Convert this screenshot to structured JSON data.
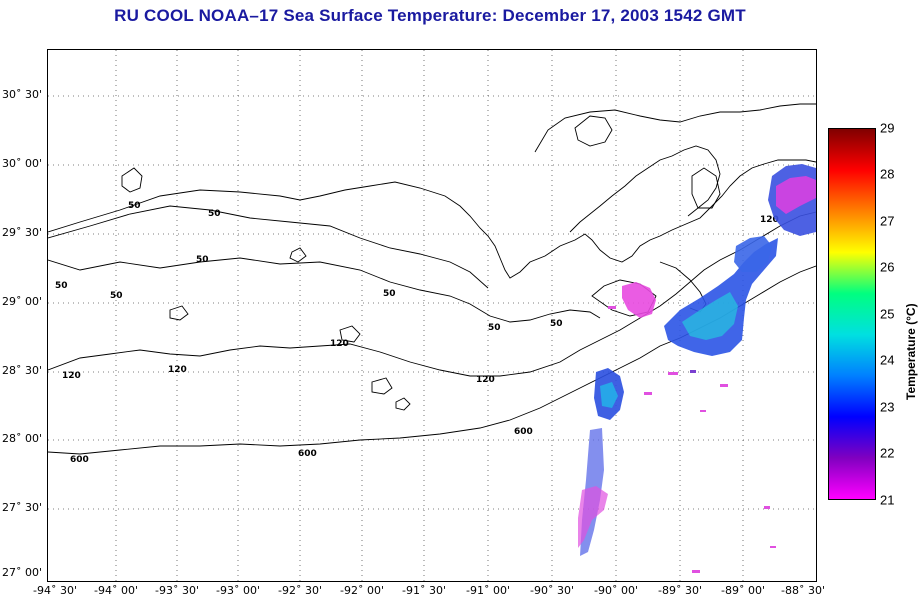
{
  "title": "RU COOL  NOAA–17  Sea Surface Temperature:  December 17, 2003 1542 GMT",
  "lat_ticks": [
    "30˚ 30'",
    "30˚ 00'",
    "29˚ 30'",
    "29˚ 00'",
    "28˚ 30'",
    "28˚ 00'",
    "27˚ 30'",
    "27˚ 00'"
  ],
  "lon_ticks": [
    "-94˚ 30'",
    "-94˚ 00'",
    "-93˚ 30'",
    "-93˚ 00'",
    "-92˚ 30'",
    "-92˚ 00'",
    "-91˚ 30'",
    "-91˚ 00'",
    "-90˚ 30'",
    "-90˚ 00'",
    "-89˚ 30'",
    "-89˚ 00'",
    "-88˚ 30'"
  ],
  "contour_labels": [
    "50",
    "120",
    "600"
  ],
  "colorbar": {
    "title": "Temperature (°C)",
    "ticks": [
      "29",
      "28",
      "27",
      "26",
      "25",
      "24",
      "23",
      "22",
      "21"
    ],
    "colors": [
      "#ff00ff",
      "#8000c0",
      "#0000ff",
      "#0080ff",
      "#00e0e0",
      "#00ff80",
      "#ffff00",
      "#ff8000",
      "#ff0000",
      "#800000"
    ]
  }
}
